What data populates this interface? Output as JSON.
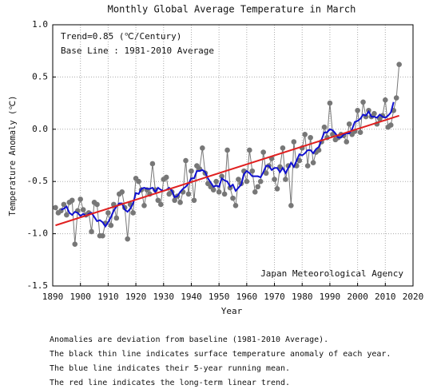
{
  "chart_data": {
    "type": "line",
    "title": "Monthly Global Average Temperature in March",
    "xlabel": "Year",
    "ylabel": "Temperature Anomaly (℃)",
    "annotations": [
      "Trend=0.85 (℃/Century)",
      "Base Line : 1981-2010 Average",
      "Japan Meteorological Agency"
    ],
    "notes": [
      "Anomalies are deviation from baseline (1981-2010 Average).",
      "The black thin line indicates surface temperature anomaly of each year.",
      "The blue line indicates their 5-year running mean.",
      "The red line indicates the long-term linear trend."
    ],
    "xlim": [
      1890,
      2020
    ],
    "xticks": [
      1890,
      1900,
      1910,
      1920,
      1930,
      1940,
      1950,
      1960,
      1970,
      1980,
      1990,
      2000,
      2010,
      2020
    ],
    "ylim": [
      -1.5,
      1.0
    ],
    "yticks": [
      {
        "value": 1.0,
        "label": "1.0"
      },
      0.5,
      {
        "value": 0.0,
        "label": "0.0"
      },
      -0.5,
      {
        "value": -1.0,
        "label": "-1.0"
      },
      -1.5
    ],
    "grid": true,
    "x": [
      1891,
      1892,
      1893,
      1894,
      1895,
      1896,
      1897,
      1898,
      1899,
      1900,
      1901,
      1902,
      1903,
      1904,
      1905,
      1906,
      1907,
      1908,
      1909,
      1910,
      1911,
      1912,
      1913,
      1914,
      1915,
      1916,
      1917,
      1918,
      1919,
      1920,
      1921,
      1922,
      1923,
      1924,
      1925,
      1926,
      1927,
      1928,
      1929,
      1930,
      1931,
      1932,
      1933,
      1934,
      1935,
      1936,
      1937,
      1938,
      1939,
      1940,
      1941,
      1942,
      1943,
      1944,
      1945,
      1946,
      1947,
      1948,
      1949,
      1950,
      1951,
      1952,
      1953,
      1954,
      1955,
      1956,
      1957,
      1958,
      1959,
      1960,
      1961,
      1962,
      1963,
      1964,
      1965,
      1966,
      1967,
      1968,
      1969,
      1970,
      1971,
      1972,
      1973,
      1974,
      1975,
      1976,
      1977,
      1978,
      1979,
      1980,
      1981,
      1982,
      1983,
      1984,
      1985,
      1986,
      1987,
      1988,
      1989,
      1990,
      1991,
      1992,
      1993,
      1994,
      1995,
      1996,
      1997,
      1998,
      1999,
      2000,
      2001,
      2002,
      2003,
      2004,
      2005,
      2006,
      2007,
      2008,
      2009,
      2010,
      2011,
      2012,
      2013,
      2014,
      2015
    ],
    "series": [
      {
        "color": "#777777",
        "markers": true,
        "values": [
          -0.75,
          -0.8,
          -0.78,
          -0.72,
          -0.82,
          -0.7,
          -0.68,
          -1.1,
          -0.78,
          -0.67,
          -0.77,
          -0.82,
          -0.8,
          -0.98,
          -0.7,
          -0.72,
          -1.02,
          -1.02,
          -0.9,
          -0.8,
          -0.92,
          -0.72,
          -0.85,
          -0.62,
          -0.6,
          -0.75,
          -1.05,
          -0.72,
          -0.8,
          -0.47,
          -0.5,
          -0.58,
          -0.73,
          -0.58,
          -0.62,
          -0.33,
          -0.58,
          -0.68,
          -0.72,
          -0.48,
          -0.46,
          -0.62,
          -0.6,
          -0.68,
          -0.64,
          -0.7,
          -0.6,
          -0.3,
          -0.62,
          -0.4,
          -0.68,
          -0.35,
          -0.38,
          -0.18,
          -0.42,
          -0.52,
          -0.55,
          -0.58,
          -0.5,
          -0.6,
          -0.45,
          -0.62,
          -0.2,
          -0.56,
          -0.66,
          -0.73,
          -0.48,
          -0.52,
          -0.4,
          -0.5,
          -0.2,
          -0.4,
          -0.6,
          -0.55,
          -0.5,
          -0.22,
          -0.42,
          -0.35,
          -0.28,
          -0.48,
          -0.57,
          -0.36,
          -0.18,
          -0.48,
          -0.35,
          -0.73,
          -0.12,
          -0.35,
          -0.3,
          -0.18,
          -0.05,
          -0.35,
          -0.08,
          -0.32,
          -0.22,
          -0.2,
          -0.12,
          0.02,
          -0.08,
          0.25,
          -0.05,
          -0.1,
          -0.08,
          -0.05,
          -0.06,
          -0.12,
          0.05,
          -0.05,
          -0.02,
          0.18,
          -0.03,
          0.26,
          0.12,
          0.18,
          0.12,
          0.15,
          0.05,
          0.1,
          0.13,
          0.28,
          0.02,
          0.04,
          0.18,
          0.3,
          0.62
        ]
      },
      {
        "color": "#1010d0",
        "markers": false,
        "values": [
          null,
          null,
          -0.77,
          -0.76,
          -0.74,
          -0.8,
          -0.82,
          -0.79,
          -0.8,
          -0.83,
          -0.81,
          -0.83,
          -0.81,
          -0.8,
          -0.84,
          -0.88,
          -0.87,
          -0.89,
          -0.93,
          -0.89,
          -0.84,
          -0.78,
          -0.74,
          -0.71,
          -0.71,
          -0.77,
          -0.79,
          -0.76,
          -0.71,
          -0.61,
          -0.62,
          -0.57,
          -0.56,
          -0.57,
          -0.57,
          -0.56,
          -0.6,
          -0.56,
          -0.58,
          -0.59,
          -0.58,
          -0.56,
          -0.59,
          -0.65,
          -0.64,
          -0.6,
          -0.57,
          -0.55,
          -0.52,
          -0.47,
          -0.47,
          -0.4,
          -0.4,
          -0.39,
          -0.41,
          -0.47,
          -0.51,
          -0.55,
          -0.54,
          -0.55,
          -0.47,
          -0.49,
          -0.5,
          -0.55,
          -0.53,
          -0.59,
          -0.56,
          -0.53,
          -0.43,
          -0.4,
          -0.42,
          -0.45,
          -0.45,
          -0.45,
          -0.46,
          -0.41,
          -0.35,
          -0.35,
          -0.39,
          -0.37,
          -0.37,
          -0.41,
          -0.37,
          -0.42,
          -0.37,
          -0.32,
          -0.36,
          -0.3,
          -0.24,
          -0.25,
          -0.23,
          -0.2,
          -0.2,
          -0.23,
          -0.19,
          -0.17,
          -0.1,
          -0.03,
          -0.03,
          0.0,
          -0.01,
          -0.04,
          -0.08,
          -0.08,
          -0.05,
          -0.04,
          -0.04,
          0.0,
          0.07,
          0.08,
          0.1,
          0.14,
          0.13,
          0.17,
          0.12,
          0.12,
          0.11,
          0.14,
          0.12,
          0.11,
          0.13,
          0.16,
          0.26,
          null,
          null
        ]
      }
    ],
    "trend": {
      "color": "#e02020",
      "x": [
        1891,
        2015
      ],
      "values": [
        -0.92,
        0.13
      ]
    }
  }
}
